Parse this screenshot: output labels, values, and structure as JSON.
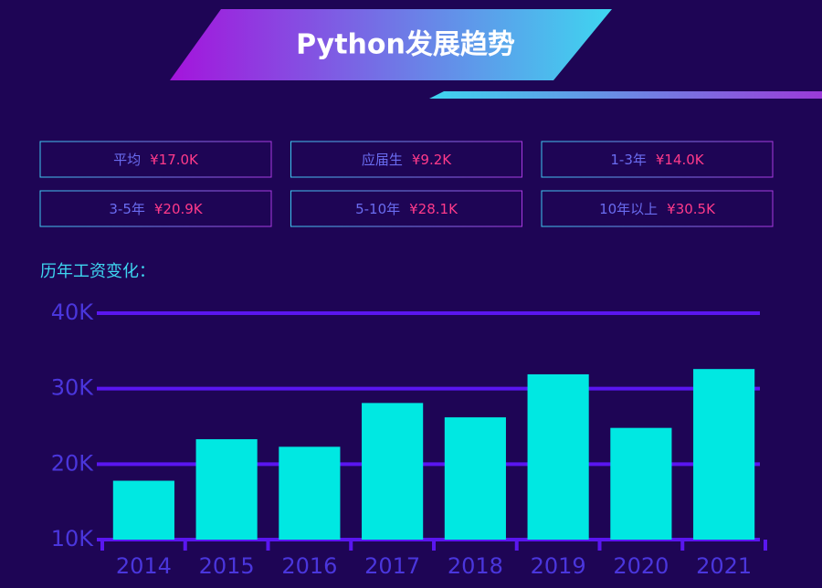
{
  "title": "Python发展趋势",
  "stats": [
    {
      "label": "平均",
      "value": "¥17.0K"
    },
    {
      "label": "应届生",
      "value": "¥9.2K"
    },
    {
      "label": "1-3年",
      "value": "¥14.0K"
    },
    {
      "label": "3-5年",
      "value": "¥20.9K"
    },
    {
      "label": "5-10年",
      "value": "¥28.1K"
    },
    {
      "label": "10年以上",
      "value": "¥30.5K"
    }
  ],
  "chart_data": {
    "type": "bar",
    "title": "历年工资变化：",
    "categories": [
      "2014",
      "2015",
      "2016",
      "2017",
      "2018",
      "2019",
      "2020",
      "2021"
    ],
    "values": [
      17800,
      23300,
      22300,
      28100,
      26200,
      31900,
      24800,
      32600
    ],
    "color": "#00e8e2",
    "ylim": [
      10000,
      40000
    ],
    "yticks": [
      {
        "value": 10000,
        "label": "10K"
      },
      {
        "value": 20000,
        "label": "20K"
      },
      {
        "value": 30000,
        "label": "30K"
      },
      {
        "value": 40000,
        "label": "40K"
      }
    ],
    "grid": true
  }
}
